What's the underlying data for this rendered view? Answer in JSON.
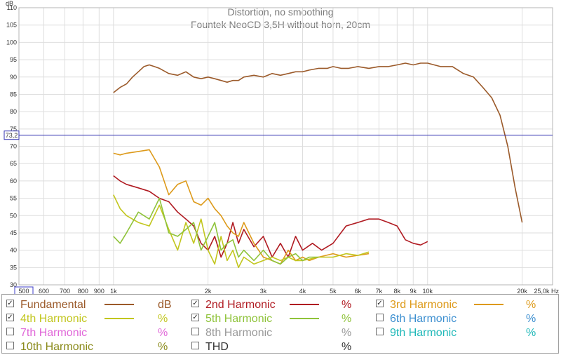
{
  "chart_data": {
    "type": "line",
    "title": "Distortion, no smoothing",
    "subtitle": "Fountek NeoCD 3,5H without horn, 20cm",
    "ylabel": "dB",
    "xlabel": "Hz",
    "x_scale": "log",
    "xlim": [
      500,
      25000
    ],
    "ylim": [
      30,
      110
    ],
    "y_ticks": [
      "30",
      "35",
      "40",
      "45",
      "50",
      "55",
      "60",
      "65",
      "70",
      "75",
      "80",
      "85",
      "90",
      "95",
      "100",
      "105",
      "110"
    ],
    "x_ticks": [
      {
        "v": 500,
        "label": "500"
      },
      {
        "v": 600,
        "label": "600"
      },
      {
        "v": 700,
        "label": "700"
      },
      {
        "v": 800,
        "label": "800"
      },
      {
        "v": 900,
        "label": "900"
      },
      {
        "v": 1000,
        "label": "1k"
      },
      {
        "v": 2000,
        "label": "2k"
      },
      {
        "v": 3000,
        "label": "3k"
      },
      {
        "v": 4000,
        "label": "4k"
      },
      {
        "v": 5000,
        "label": "5k"
      },
      {
        "v": 6000,
        "label": "6k"
      },
      {
        "v": 7000,
        "label": "7k"
      },
      {
        "v": 8000,
        "label": "8k"
      },
      {
        "v": 9000,
        "label": "9k"
      },
      {
        "v": 10000,
        "label": "10k"
      },
      {
        "v": 20000,
        "label": "20k"
      },
      {
        "v": 25000,
        "label": "25,0k Hz"
      }
    ],
    "grid": true,
    "cursor": {
      "y": 73.2,
      "label": "73,2"
    },
    "series": [
      {
        "name": "Fundamental",
        "color": "#9b5a2a",
        "x": [
          1000,
          1050,
          1100,
          1150,
          1200,
          1250,
          1300,
          1350,
          1400,
          1500,
          1600,
          1700,
          1800,
          1900,
          2000,
          2100,
          2200,
          2300,
          2400,
          2500,
          2600,
          2800,
          3000,
          3200,
          3400,
          3600,
          3800,
          4000,
          4200,
          4500,
          4800,
          5000,
          5300,
          5600,
          6000,
          6500,
          7000,
          7500,
          8000,
          8500,
          9000,
          9500,
          10000,
          10500,
          11000,
          12000,
          13000,
          14000,
          15000,
          16000,
          17000,
          18000,
          19000,
          20000
        ],
        "y": [
          85.5,
          87,
          88,
          90,
          91.5,
          93,
          93.5,
          93,
          92.5,
          91,
          90.5,
          91.5,
          90,
          89.5,
          90,
          89.5,
          89,
          88.5,
          89,
          89,
          90,
          90.5,
          90,
          91,
          90.5,
          91,
          91.5,
          91.5,
          92,
          92.5,
          92.5,
          93,
          92.5,
          92.5,
          93,
          92.5,
          93,
          93,
          93.5,
          94,
          93.5,
          94,
          94,
          93.5,
          93,
          93,
          91,
          90,
          87,
          84,
          79,
          70,
          58,
          48
        ]
      },
      {
        "name": "2nd Harmonic",
        "color": "#b01b22",
        "x": [
          1000,
          1050,
          1100,
          1200,
          1300,
          1400,
          1500,
          1600,
          1700,
          1800,
          1900,
          2000,
          2100,
          2200,
          2300,
          2400,
          2500,
          2600,
          2800,
          3000,
          3200,
          3400,
          3600,
          3800,
          4000,
          4300,
          4600,
          5000,
          5500,
          6000,
          6500,
          7000,
          7500,
          8000,
          8500,
          9000,
          9500,
          10000
        ],
        "y": [
          61.5,
          60,
          59,
          58,
          57,
          55,
          54,
          51,
          49,
          47,
          42,
          40,
          44,
          38,
          42,
          48,
          42,
          46,
          41,
          44,
          38,
          42,
          38,
          44,
          40,
          42,
          40,
          42,
          47,
          48,
          49,
          49,
          48,
          47,
          43,
          42,
          41.5,
          42.5
        ]
      },
      {
        "name": "3rd Harmonic",
        "color": "#dd9a1a",
        "x": [
          1000,
          1050,
          1100,
          1200,
          1300,
          1400,
          1500,
          1600,
          1700,
          1800,
          1900,
          2000,
          2100,
          2200,
          2300,
          2400,
          2500,
          2600,
          2800,
          3000,
          3200,
          3400,
          3600,
          3800,
          4000,
          4200,
          4500,
          5000,
          5500,
          6000,
          6500
        ],
        "y": [
          68,
          67.5,
          68,
          68.5,
          69,
          64,
          56,
          59,
          60,
          54,
          53,
          55,
          52,
          50,
          47,
          45,
          44,
          48,
          42,
          38,
          37,
          36,
          40,
          37,
          38,
          37,
          38,
          39,
          38,
          38.5,
          39
        ]
      },
      {
        "name": "4th Harmonic",
        "color": "#c2c61e",
        "x": [
          1000,
          1050,
          1100,
          1200,
          1300,
          1400,
          1500,
          1600,
          1700,
          1800,
          1900,
          2000,
          2100,
          2200,
          2300,
          2400,
          2500,
          2600,
          2800,
          3000,
          3200,
          3400,
          3600,
          3800,
          4000,
          4500,
          5000,
          5500,
          6000,
          6500
        ],
        "y": [
          56,
          52,
          50,
          48,
          47,
          53,
          46,
          40,
          48,
          42,
          49,
          40,
          36,
          44,
          37,
          40,
          35,
          38,
          36,
          37,
          38,
          37,
          38,
          37,
          37,
          38,
          38,
          39,
          38.5,
          39.5
        ]
      },
      {
        "name": "5th Harmonic",
        "color": "#8fc33a",
        "x": [
          1000,
          1050,
          1100,
          1200,
          1300,
          1400,
          1500,
          1600,
          1700,
          1800,
          1900,
          2000,
          2100,
          2200,
          2300,
          2400,
          2500,
          2600,
          2800,
          3000,
          3200,
          3400,
          3600,
          3800,
          4000,
          4200,
          4500
        ],
        "y": [
          44,
          42,
          45,
          51,
          49,
          55,
          45,
          44,
          46,
          48,
          40,
          44,
          48,
          40,
          42,
          43,
          38,
          40,
          37,
          40,
          37,
          36,
          38,
          39,
          37,
          38,
          38
        ]
      }
    ]
  },
  "legend": {
    "items": [
      {
        "name": "Fundamental",
        "checked": true,
        "color": "#9b5a2a",
        "unit": "dB"
      },
      {
        "name": "2nd Harmonic",
        "checked": true,
        "color": "#b01b22",
        "unit": "%"
      },
      {
        "name": "3rd Harmonic",
        "checked": true,
        "color": "#dd9a1a",
        "unit": "%"
      },
      {
        "name": "4th Harmonic",
        "checked": true,
        "color": "#c2c61e",
        "unit": "%"
      },
      {
        "name": "5th Harmonic",
        "checked": true,
        "color": "#8fc33a",
        "unit": "%"
      },
      {
        "name": "6th Harmonic",
        "checked": false,
        "color": "#3c8fd0",
        "unit": "%"
      },
      {
        "name": "7th Harmonic",
        "checked": false,
        "color": "#e066d8",
        "unit": "%"
      },
      {
        "name": "8th Harmonic",
        "checked": false,
        "color": "#9a9a9a",
        "unit": "%"
      },
      {
        "name": "9th Harmonic",
        "checked": false,
        "color": "#1fb8b8",
        "unit": "%"
      },
      {
        "name": "10th Harmonic",
        "checked": false,
        "color": "#8a8a1a",
        "unit": "%"
      },
      {
        "name": "THD",
        "checked": false,
        "color": "#333333",
        "unit": "%"
      }
    ]
  }
}
